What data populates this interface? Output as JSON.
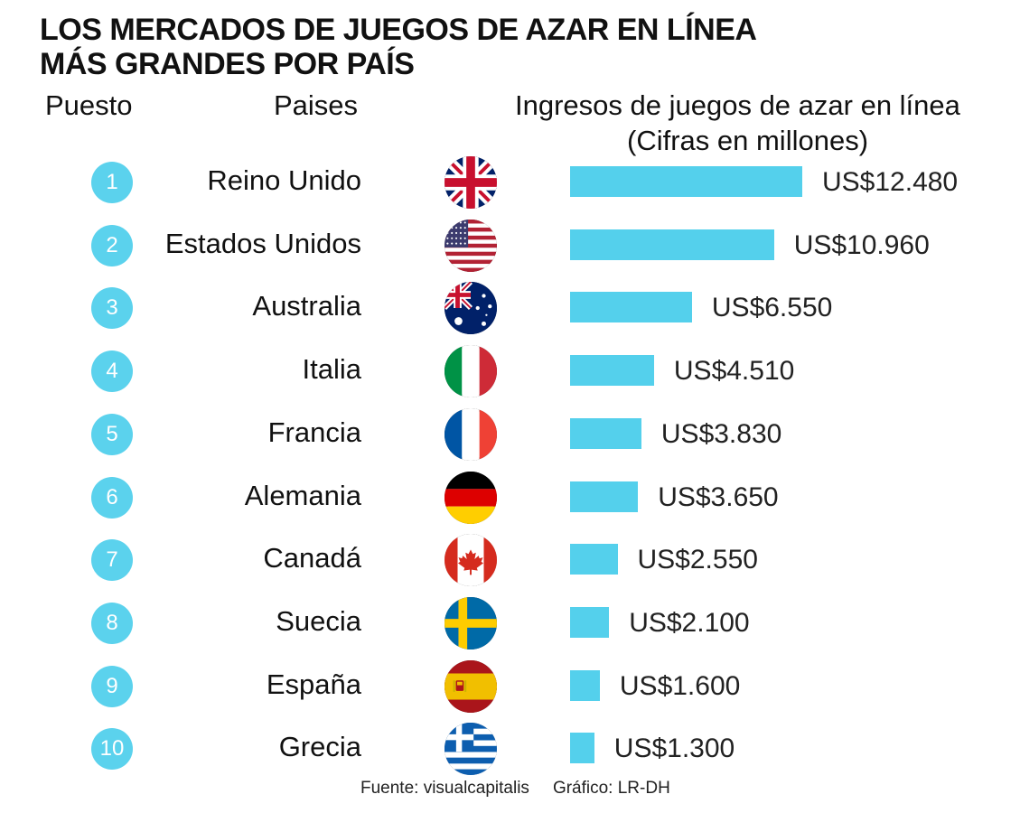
{
  "header": {
    "title_line1": "LOS MERCADOS DE JUEGOS DE AZAR EN LÍNEA",
    "title_line2": "MÁS GRANDES POR PAÍS",
    "col_rank": "Puesto",
    "col_country": "Paises",
    "col_revenue_line1": "Ingresos de juegos de azar en línea",
    "col_revenue_line2": "(Cifras en millones)"
  },
  "footer": {
    "source": "Fuente: visualcapitalis",
    "credit": "Gráfico: LR-DH"
  },
  "colors": {
    "bar": "#54d0ec",
    "badge": "#5bd2ed"
  },
  "chart_data": {
    "type": "bar",
    "orientation": "horizontal",
    "title": "LOS MERCADOS DE JUEGOS DE AZAR EN LÍNEA MÁS GRANDES POR PAÍS",
    "ylabel": "Ingresos de juegos de azar en línea (Cifras en millones)",
    "grid": false,
    "legend": "none",
    "rows": [
      {
        "rank": "1",
        "country": "Reino Unido",
        "flag": "uk-flag-icon",
        "value": 12480,
        "label": "US$12.480"
      },
      {
        "rank": "2",
        "country": "Estados Unidos",
        "flag": "us-flag-icon",
        "value": 10960,
        "label": "US$10.960"
      },
      {
        "rank": "3",
        "country": "Australia",
        "flag": "australia-flag-icon",
        "value": 6550,
        "label": "US$6.550"
      },
      {
        "rank": "4",
        "country": "Italia",
        "flag": "italy-flag-icon",
        "value": 4510,
        "label": "US$4.510"
      },
      {
        "rank": "5",
        "country": "Francia",
        "flag": "france-flag-icon",
        "value": 3830,
        "label": "US$3.830"
      },
      {
        "rank": "6",
        "country": "Alemania",
        "flag": "germany-flag-icon",
        "value": 3650,
        "label": "US$3.650"
      },
      {
        "rank": "7",
        "country": "Canadá",
        "flag": "canada-flag-icon",
        "value": 2550,
        "label": "US$2.550"
      },
      {
        "rank": "8",
        "country": "Suecia",
        "flag": "sweden-flag-icon",
        "value": 2100,
        "label": "US$2.100"
      },
      {
        "rank": "9",
        "country": "España",
        "flag": "spain-flag-icon",
        "value": 1600,
        "label": "US$1.600"
      },
      {
        "rank": "10",
        "country": "Grecia",
        "flag": "greece-flag-icon",
        "value": 1300,
        "label": "US$1.300"
      }
    ]
  }
}
